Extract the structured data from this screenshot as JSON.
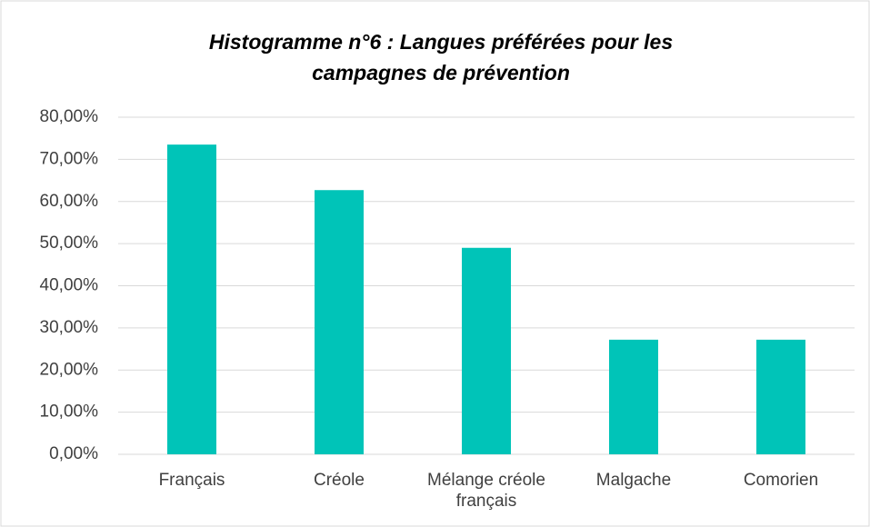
{
  "chart_data": {
    "type": "bar",
    "title": [
      "Histogramme n°6 : Langues préférées pour les",
      "campagnes de prévention"
    ],
    "categories": [
      "Français",
      "Créole",
      "Mélange créole français",
      "Malgache",
      "Comorien"
    ],
    "values": [
      73.5,
      62.7,
      49,
      27.2,
      27.2
    ],
    "color": "#00c4b8",
    "ylim": [
      0,
      80
    ],
    "yticks": [
      {
        "value": 0,
        "label": "0,00%"
      },
      {
        "value": 10,
        "label": "10,00%"
      },
      {
        "value": 20,
        "label": "20,00%"
      },
      {
        "value": 30,
        "label": "30,00%"
      },
      {
        "value": 40,
        "label": "40,00%"
      },
      {
        "value": 50,
        "label": "50,00%"
      },
      {
        "value": 60,
        "label": "60,00%"
      },
      {
        "value": 70,
        "label": "70,00%"
      },
      {
        "value": 80,
        "label": "80,00%"
      }
    ],
    "grid": true
  }
}
